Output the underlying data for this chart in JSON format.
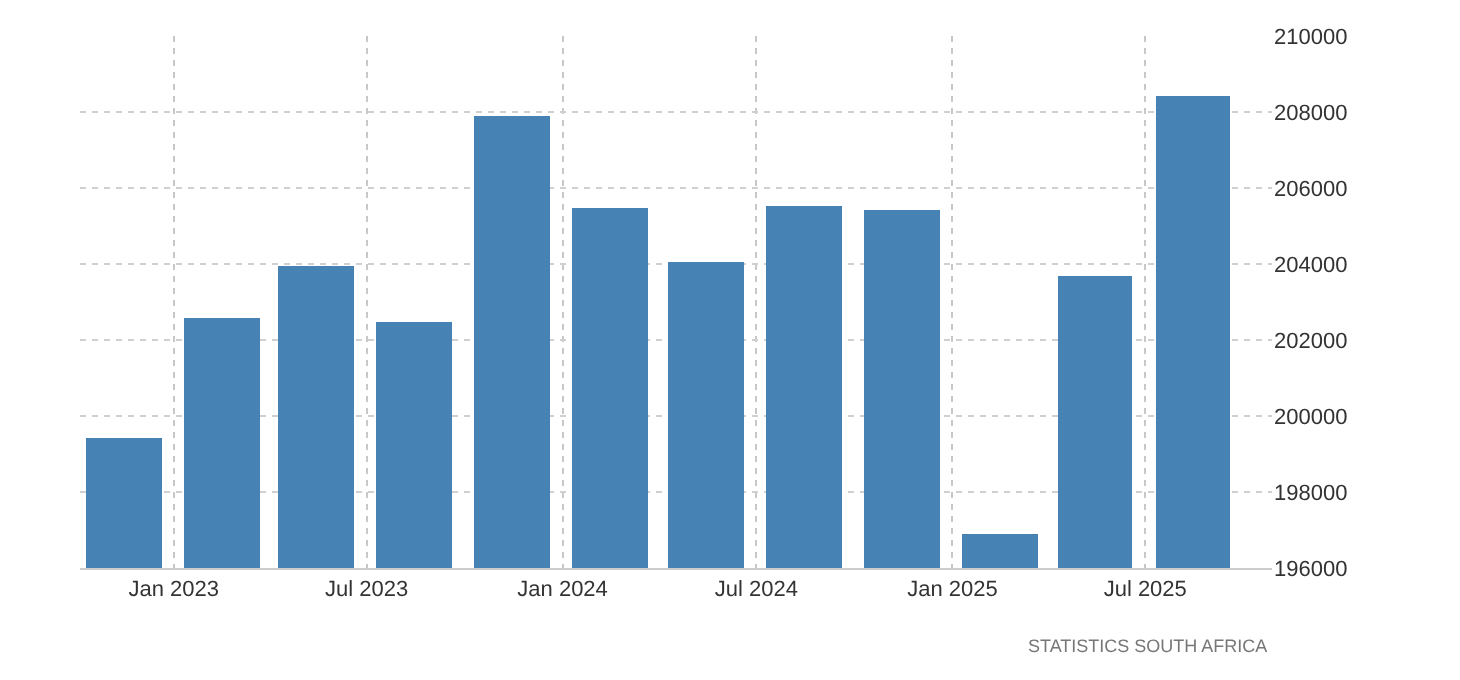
{
  "chart_data": {
    "type": "bar",
    "x": [
      "2022-11-15",
      "2023-02-15",
      "2023-05-15",
      "2023-08-15",
      "2023-11-15",
      "2024-02-15",
      "2024-05-15",
      "2024-08-15",
      "2024-11-15",
      "2025-02-15",
      "2025-05-15",
      "2025-08-15"
    ],
    "values": [
      199400,
      202600,
      203950,
      202500,
      207900,
      205500,
      204050,
      205550,
      205400,
      196900,
      203700,
      208400
    ],
    "color": "#4682b4",
    "xlim": [
      "2022-10-05",
      "2025-10-28"
    ],
    "xticks": [
      {
        "value": "2023-01-01",
        "label": "Jan 2023"
      },
      {
        "value": "2023-07-01",
        "label": "Jul 2023"
      },
      {
        "value": "2024-01-01",
        "label": "Jan 2024"
      },
      {
        "value": "2024-07-01",
        "label": "Jul 2024"
      },
      {
        "value": "2025-01-01",
        "label": "Jan 2025"
      },
      {
        "value": "2025-07-01",
        "label": "Jul 2025"
      }
    ],
    "ylim": [
      196000,
      210000
    ],
    "yticks": [
      196000,
      198000,
      200000,
      202000,
      204000,
      206000,
      208000,
      210000
    ],
    "grid": true,
    "annotations": [
      "STATISTICS SOUTH AFRICA"
    ]
  }
}
